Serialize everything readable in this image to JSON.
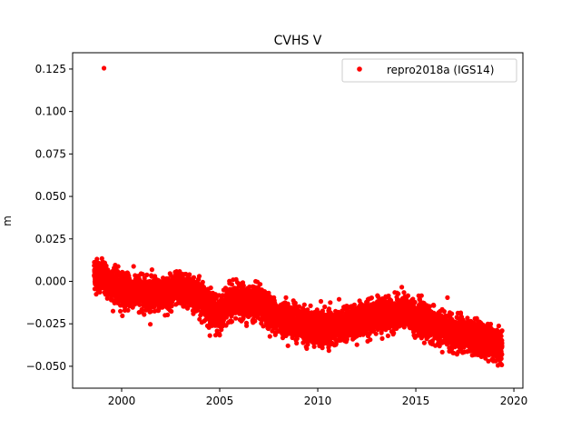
{
  "chart_data": {
    "type": "scatter",
    "title": "CVHS V",
    "xlabel": "",
    "ylabel": "m",
    "xlim": [
      1997.5,
      2020.46
    ],
    "ylim": [
      -0.0629,
      0.1346
    ],
    "xticks": [
      2000,
      2005,
      2010,
      2015,
      2020
    ],
    "xtick_labels": [
      "2000",
      "2005",
      "2010",
      "2015",
      "2020"
    ],
    "yticks": [
      -0.05,
      -0.025,
      0,
      0.025,
      0.05,
      0.075,
      0.1,
      0.125
    ],
    "ytick_labels": [
      "−0.050",
      "−0.025",
      "0.000",
      "0.025",
      "0.050",
      "0.075",
      "0.100",
      "0.125"
    ],
    "grid": false,
    "legend": {
      "placement": "top-right",
      "entries": [
        "repro2018a (IGS14)"
      ]
    },
    "series": [
      {
        "name": "repro2018a (IGS14)",
        "color": "#ff0000",
        "marker": "circle",
        "trend_x": [
          1998.6,
          2000,
          2002,
          2003,
          2004,
          2005,
          2005.5,
          2007,
          2008,
          2010,
          2011,
          2013,
          2014.5,
          2016,
          2018,
          2019.4
        ],
        "trend_y": [
          0.005,
          -0.005,
          -0.008,
          -0.004,
          -0.009,
          -0.021,
          -0.012,
          -0.013,
          -0.021,
          -0.028,
          -0.027,
          -0.02,
          -0.018,
          -0.027,
          -0.033,
          -0.038
        ],
        "noise_std": 0.0045,
        "daily_sampling": true,
        "outliers": [
          {
            "x": 1999.1,
            "y": 0.1255
          }
        ]
      }
    ]
  }
}
